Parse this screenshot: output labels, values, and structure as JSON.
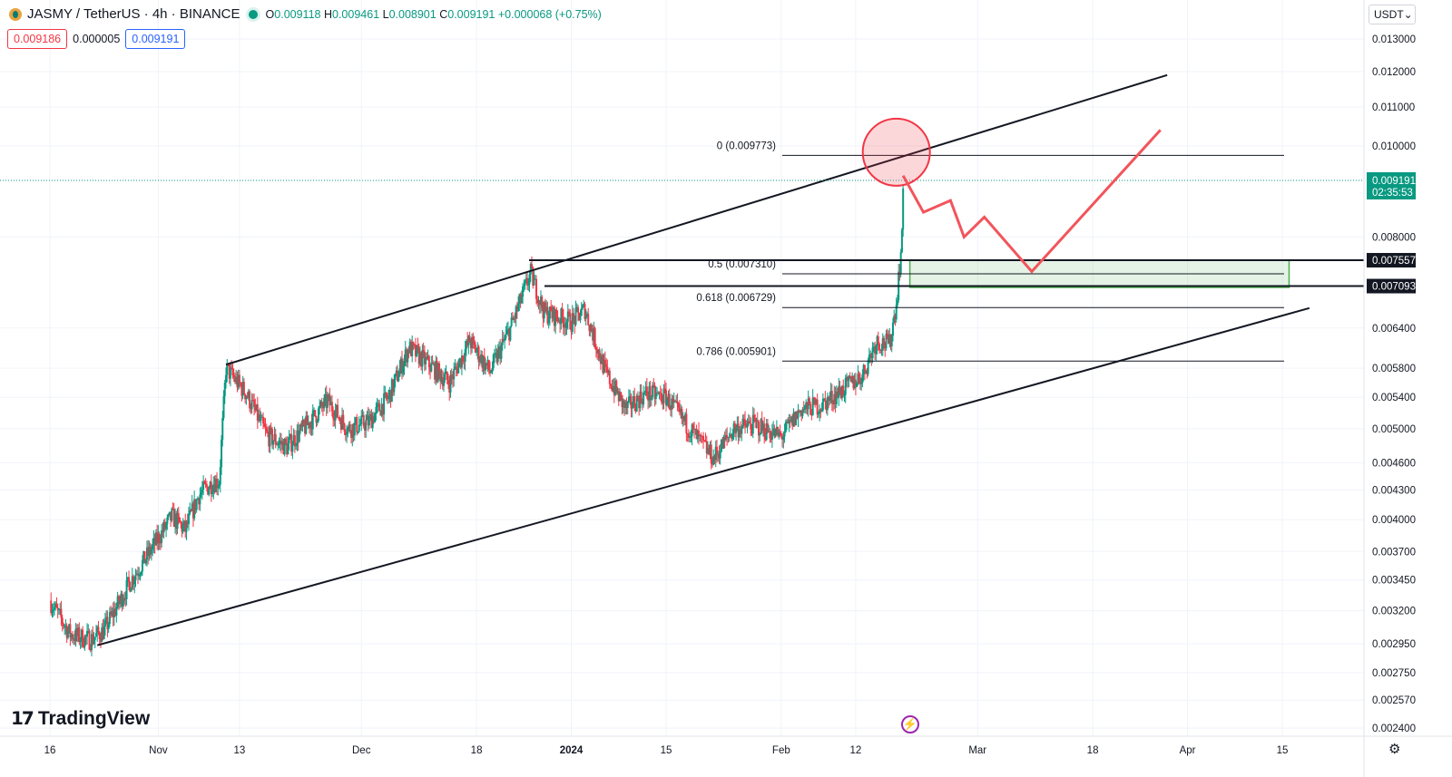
{
  "header": {
    "symbol": "JASMY / TetherUS · 4h · BINANCE",
    "o_label": "O",
    "o": "0.009118",
    "h_label": "H",
    "h": "0.009461",
    "l_label": "L",
    "l": "0.008901",
    "c_label": "C",
    "c": "0.009191",
    "change": "+0.000068 (+0.75%)"
  },
  "prices": {
    "bid": "0.009186",
    "spread": "0.000005",
    "ask": "0.009191"
  },
  "currency_selector": {
    "label": "USDT",
    "icon": "chevron-down-icon"
  },
  "branding": {
    "logo_text": "TradingView",
    "logo_icon": "tradingview-logo-icon"
  },
  "icons": {
    "bolt": "lightning-icon",
    "settings": "gear-icon"
  },
  "colors": {
    "up": "#089981",
    "down": "#f23645",
    "projection": "#f2545b",
    "zone": "#4caf50",
    "line": "#131722"
  },
  "chart_data": {
    "type": "candlestick",
    "title": "",
    "xlabel": "",
    "ylabel": "",
    "y_scale": "log",
    "y_ticks": [
      "0.013000",
      "0.012000",
      "0.011000",
      "0.010000",
      "0.008000",
      "0.006400",
      "0.005800",
      "0.005400",
      "0.005000",
      "0.004600",
      "0.004300",
      "0.004000",
      "0.003700",
      "0.003450",
      "0.003200",
      "0.002950",
      "0.002750",
      "0.002570",
      "0.002400"
    ],
    "x_ticks": [
      "16",
      "Nov",
      "13",
      "Dec",
      "18",
      "2024",
      "15",
      "Feb",
      "12",
      "Mar",
      "18",
      "Apr",
      "15"
    ],
    "x_tick_dates": [
      "2023-10-16",
      "2023-11-01",
      "2023-11-13",
      "2023-12-01",
      "2023-12-18",
      "2024-01-01",
      "2024-01-15",
      "2024-02-01",
      "2024-02-12",
      "2024-03-01",
      "2024-03-18",
      "2024-04-01",
      "2024-04-15"
    ],
    "ylim": [
      0.00232,
      0.0138
    ],
    "last_price": {
      "value": "0.009191",
      "countdown": "02:35:53"
    },
    "price_path": [
      [
        "2023-10-16",
        0.00328
      ],
      [
        "2023-10-19",
        0.00302
      ],
      [
        "2023-10-22",
        0.00298
      ],
      [
        "2023-10-24",
        0.00305
      ],
      [
        "2023-10-28",
        0.00345
      ],
      [
        "2023-10-31",
        0.00372
      ],
      [
        "2023-11-03",
        0.00403
      ],
      [
        "2023-11-05",
        0.0039
      ],
      [
        "2023-11-07",
        0.00425
      ],
      [
        "2023-11-09",
        0.00438
      ],
      [
        "2023-11-10",
        0.0044
      ],
      [
        "2023-11-11",
        0.0058
      ],
      [
        "2023-11-14",
        0.00545
      ],
      [
        "2023-11-17",
        0.00492
      ],
      [
        "2023-11-20",
        0.00478
      ],
      [
        "2023-11-23",
        0.00505
      ],
      [
        "2023-11-26",
        0.00535
      ],
      [
        "2023-11-29",
        0.005
      ],
      [
        "2023-12-02",
        0.00508
      ],
      [
        "2023-12-05",
        0.0054
      ],
      [
        "2023-12-08",
        0.0061
      ],
      [
        "2023-12-11",
        0.00585
      ],
      [
        "2023-12-14",
        0.0056
      ],
      [
        "2023-12-17",
        0.0062
      ],
      [
        "2023-12-20",
        0.00575
      ],
      [
        "2023-12-23",
        0.0064
      ],
      [
        "2023-12-25",
        0.007
      ],
      [
        "2023-12-26",
        0.00732
      ],
      [
        "2023-12-28",
        0.00665
      ],
      [
        "2024-01-01",
        0.0065
      ],
      [
        "2024-01-03",
        0.0067
      ],
      [
        "2024-01-06",
        0.00575
      ],
      [
        "2024-01-09",
        0.00525
      ],
      [
        "2024-01-12",
        0.00545
      ],
      [
        "2024-01-15",
        0.0054
      ],
      [
        "2024-01-18",
        0.00505
      ],
      [
        "2024-01-22",
        0.00465
      ],
      [
        "2024-01-25",
        0.005
      ],
      [
        "2024-01-28",
        0.00505
      ],
      [
        "2024-02-01",
        0.0049
      ],
      [
        "2024-02-04",
        0.00525
      ],
      [
        "2024-02-07",
        0.0053
      ],
      [
        "2024-02-10",
        0.0055
      ],
      [
        "2024-02-13",
        0.0057
      ],
      [
        "2024-02-15",
        0.0062
      ],
      [
        "2024-02-17",
        0.00615
      ],
      [
        "2024-02-18",
        0.0068
      ],
      [
        "2024-02-19",
        0.0082
      ],
      [
        "2024-02-19",
        0.00919
      ]
    ],
    "trend_channel": {
      "upper": [
        [
          "2023-11-11",
          0.00585
        ],
        [
          "2024-03-29",
          0.0119
        ]
      ],
      "lower": [
        [
          "2023-10-23",
          0.00294
        ],
        [
          "2024-04-19",
          0.00672
        ]
      ]
    },
    "fibonacci": [
      {
        "label": "0 (0.009773)",
        "value": 0.009773
      },
      {
        "label": "0.5 (0.007310)",
        "value": 0.00731
      },
      {
        "label": "0.618 (0.006729)",
        "value": 0.006729
      },
      {
        "label": "0.786 (0.005901)",
        "value": 0.005901
      }
    ],
    "horizontal_levels": [
      {
        "value": 0.007557,
        "label": "0.007557"
      },
      {
        "value": 0.007093,
        "label": "0.007093"
      }
    ],
    "support_zone": {
      "from": "2024-02-20",
      "to": "2024-04-16",
      "low": 0.00707,
      "high": 0.00756
    },
    "projection": [
      [
        "2024-02-19",
        0.0093
      ],
      [
        "2024-02-22",
        0.0085
      ],
      [
        "2024-02-26",
        0.00875
      ],
      [
        "2024-02-28",
        0.008
      ],
      [
        "2024-03-02",
        0.0084
      ],
      [
        "2024-03-09",
        0.00735
      ],
      [
        "2024-03-28",
        0.0104
      ]
    ],
    "highlight_circle": {
      "date": "2024-02-18",
      "value": 0.00985
    }
  }
}
